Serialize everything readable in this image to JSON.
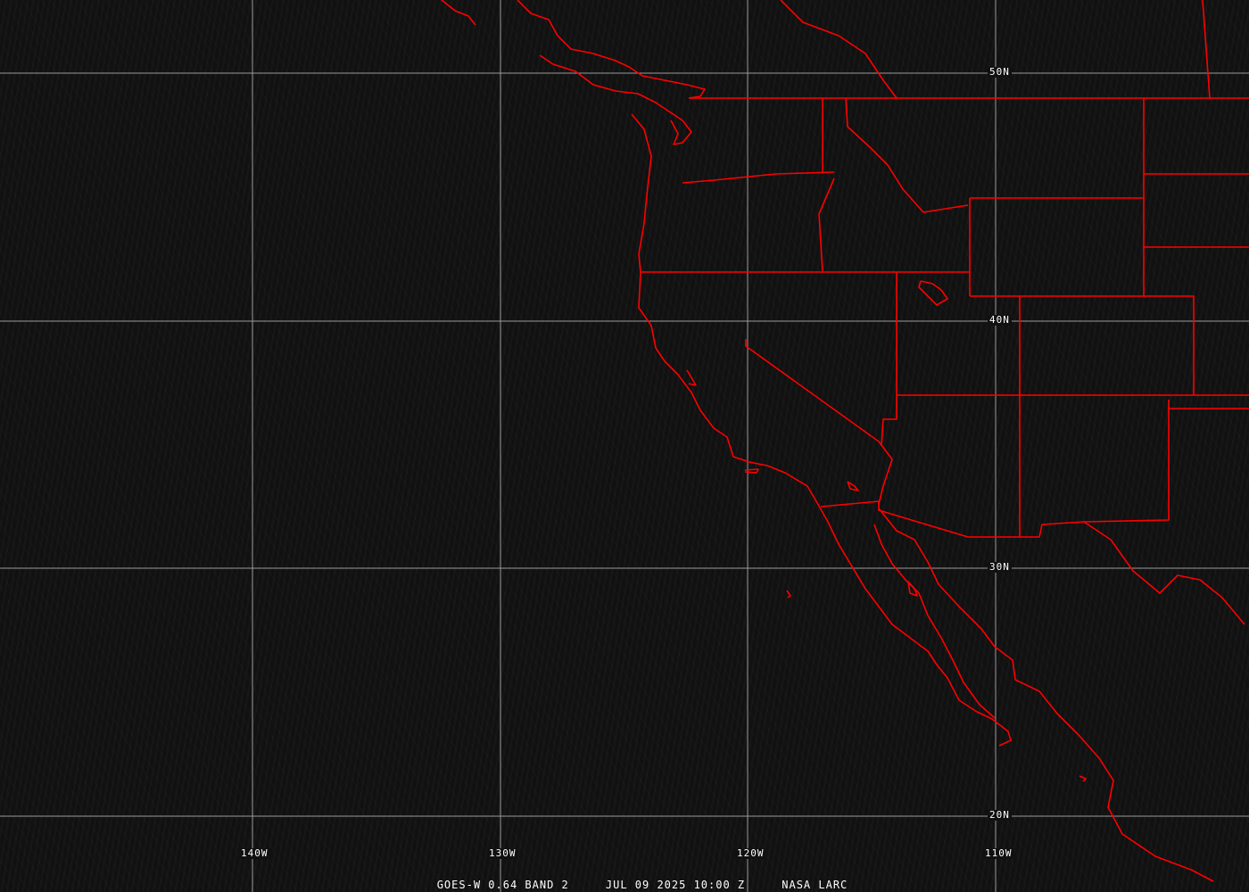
{
  "map": {
    "satellite": "GOES-W",
    "band": "0.64 BAND 2",
    "date": "JUL 09 2025",
    "time": "10:00 Z",
    "source": "NASA LARC",
    "caption": "GOES-W 0.64 BAND 2     JUL 09 2025 10:00 Z     NASA LARC",
    "latitude_labels": [
      "50N",
      "40N",
      "30N",
      "20N"
    ],
    "longitude_labels": [
      "140W",
      "130W",
      "120W",
      "110W"
    ],
    "colors": {
      "background": "#111111",
      "boundaries": "#ff0000",
      "grid": "#9a9a9a",
      "text": "#ffffff"
    }
  }
}
